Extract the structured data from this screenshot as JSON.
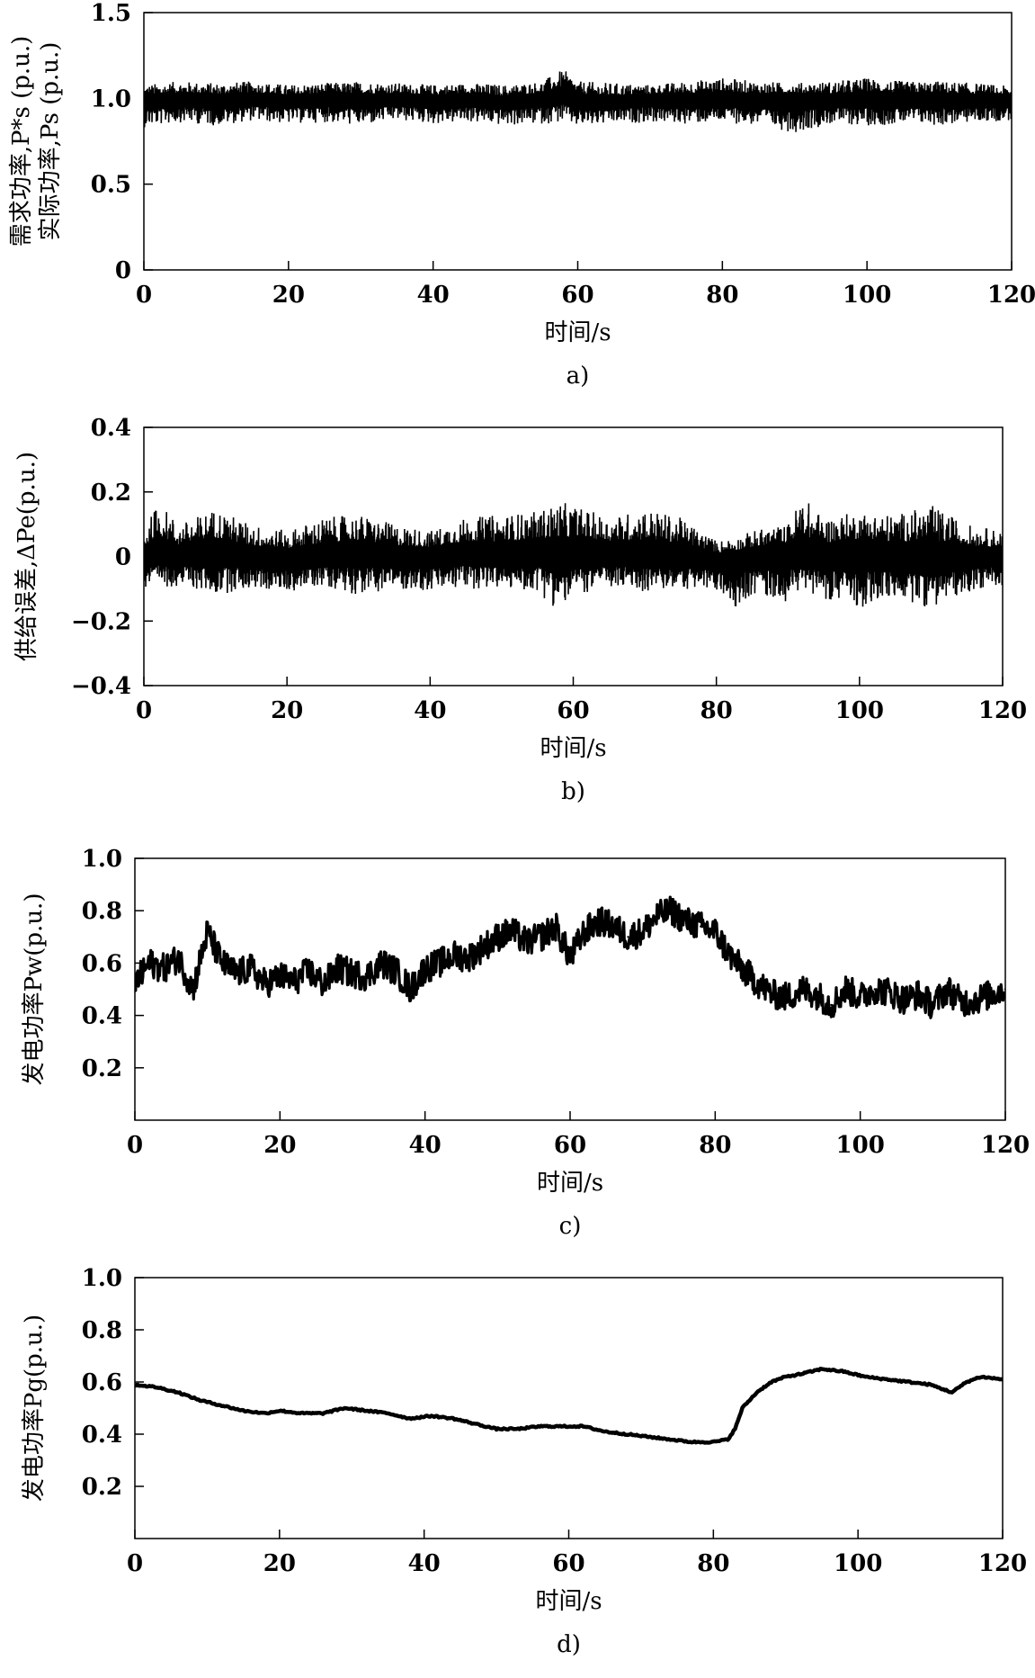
{
  "chart_data": [
    {
      "type": "line",
      "panel_label": "a)",
      "xlabel": "时间/s",
      "ylabel_line1": "需求功率,P*s (p.u.)",
      "ylabel_line2": "实际功率,Ps (p.u.)",
      "xlim": [
        0,
        120
      ],
      "ylim": [
        0,
        1.5
      ],
      "xticks": [
        "0",
        "20",
        "40",
        "60",
        "80",
        "100",
        "120"
      ],
      "yticks": [
        "0",
        "0.5",
        "1.0",
        "1.5"
      ],
      "grid": false,
      "series": [
        {
          "color": "#000000",
          "style": "noisy-band",
          "x": [
            0,
            5,
            10,
            15,
            20,
            25,
            30,
            35,
            40,
            45,
            50,
            55,
            58,
            60,
            65,
            70,
            75,
            80,
            85,
            90,
            95,
            100,
            105,
            110,
            115,
            120
          ],
          "mean": [
            0.98,
            1.0,
            0.99,
            1.0,
            0.99,
            1.0,
            0.99,
            1.0,
            0.99,
            1.0,
            0.98,
            1.0,
            1.02,
            0.99,
            0.98,
            1.0,
            0.99,
            1.0,
            0.99,
            1.0,
            0.99,
            1.0,
            0.99,
            1.0,
            0.99,
            0.98
          ],
          "max": [
            1.08,
            1.1,
            1.09,
            1.1,
            1.08,
            1.09,
            1.1,
            1.09,
            1.08,
            1.09,
            1.08,
            1.1,
            1.17,
            1.1,
            1.09,
            1.08,
            1.1,
            1.12,
            1.1,
            1.09,
            1.1,
            1.12,
            1.1,
            1.1,
            1.09,
            1.07
          ],
          "min": [
            0.83,
            0.86,
            0.84,
            0.87,
            0.85,
            0.86,
            0.84,
            0.87,
            0.85,
            0.86,
            0.84,
            0.85,
            0.86,
            0.83,
            0.85,
            0.86,
            0.85,
            0.86,
            0.84,
            0.8,
            0.85,
            0.84,
            0.85,
            0.84,
            0.86,
            0.87
          ]
        }
      ]
    },
    {
      "type": "line",
      "panel_label": "b)",
      "xlabel": "时间/s",
      "ylabel": "供给误差,ΔPe(p.u.)",
      "xlim": [
        0,
        120
      ],
      "ylim": [
        -0.4,
        0.4
      ],
      "xticks": [
        "0",
        "20",
        "40",
        "60",
        "80",
        "100",
        "120"
      ],
      "yticks": [
        "-0.4",
        "-0.2",
        "0",
        "0.2",
        "0.4"
      ],
      "grid": false,
      "series": [
        {
          "color": "#000000",
          "style": "noisy-band",
          "x": [
            0,
            2,
            5,
            10,
            15,
            20,
            25,
            30,
            35,
            40,
            45,
            50,
            55,
            58,
            60,
            65,
            70,
            75,
            80,
            83,
            85,
            90,
            92,
            95,
            100,
            105,
            110,
            115,
            120
          ],
          "mean": [
            0,
            0.01,
            0,
            0.01,
            0,
            -0.01,
            0,
            0.01,
            0,
            0,
            0.01,
            0,
            0.01,
            0,
            0,
            0.01,
            0,
            0,
            -0.01,
            0,
            0,
            0.01,
            0,
            0,
            0.01,
            0,
            -0.01,
            0,
            0
          ],
          "max": [
            0.08,
            0.17,
            0.1,
            0.15,
            0.1,
            0.08,
            0.12,
            0.13,
            0.1,
            0.08,
            0.12,
            0.13,
            0.14,
            0.17,
            0.16,
            0.12,
            0.15,
            0.12,
            0.05,
            0.06,
            0.08,
            0.1,
            0.19,
            0.12,
            0.14,
            0.13,
            0.16,
            0.1,
            0.08
          ],
          "min": [
            -0.11,
            -0.1,
            -0.09,
            -0.12,
            -0.1,
            -0.11,
            -0.09,
            -0.12,
            -0.1,
            -0.11,
            -0.1,
            -0.1,
            -0.11,
            -0.17,
            -0.12,
            -0.1,
            -0.11,
            -0.1,
            -0.11,
            -0.16,
            -0.12,
            -0.14,
            -0.1,
            -0.13,
            -0.16,
            -0.13,
            -0.16,
            -0.11,
            -0.09
          ]
        }
      ]
    },
    {
      "type": "line",
      "panel_label": "c)",
      "xlabel": "时间/s",
      "ylabel": "发电功率Pw(p.u.)",
      "xlim": [
        0,
        120
      ],
      "ylim": [
        0,
        1.0
      ],
      "xticks": [
        "0",
        "20",
        "40",
        "60",
        "80",
        "100",
        "120"
      ],
      "yticks": [
        "0.2",
        "0.4",
        "0.6",
        "0.8",
        "1.0"
      ],
      "grid": false,
      "series": [
        {
          "color": "#000000",
          "style": "noisy-line",
          "x": [
            0,
            2,
            4,
            6,
            8,
            10,
            12,
            14,
            16,
            18,
            20,
            22,
            24,
            26,
            28,
            30,
            32,
            34,
            36,
            38,
            40,
            42,
            44,
            46,
            48,
            50,
            52,
            54,
            56,
            58,
            60,
            62,
            64,
            66,
            68,
            70,
            72,
            74,
            76,
            78,
            80,
            82,
            84,
            86,
            88,
            90,
            92,
            94,
            96,
            98,
            100,
            102,
            104,
            106,
            108,
            110,
            112,
            114,
            116,
            118,
            120
          ],
          "y": [
            0.52,
            0.6,
            0.58,
            0.62,
            0.5,
            0.72,
            0.6,
            0.56,
            0.58,
            0.52,
            0.55,
            0.53,
            0.57,
            0.52,
            0.58,
            0.56,
            0.55,
            0.6,
            0.57,
            0.5,
            0.58,
            0.6,
            0.63,
            0.62,
            0.66,
            0.7,
            0.72,
            0.68,
            0.7,
            0.74,
            0.62,
            0.72,
            0.76,
            0.74,
            0.7,
            0.72,
            0.78,
            0.8,
            0.76,
            0.74,
            0.72,
            0.63,
            0.57,
            0.52,
            0.48,
            0.47,
            0.5,
            0.48,
            0.44,
            0.5,
            0.47,
            0.5,
            0.49,
            0.46,
            0.48,
            0.44,
            0.5,
            0.45,
            0.46,
            0.48,
            0.5
          ],
          "band": 0.07
        }
      ]
    },
    {
      "type": "line",
      "panel_label": "d)",
      "xlabel": "时间/s",
      "ylabel": "发电功率Pg(p.u.)",
      "xlim": [
        0,
        120
      ],
      "ylim": [
        0,
        1.0
      ],
      "xticks": [
        "0",
        "20",
        "40",
        "60",
        "80",
        "100",
        "120"
      ],
      "yticks": [
        "0.2",
        "0.4",
        "0.6",
        "0.8",
        "1.0"
      ],
      "grid": false,
      "series": [
        {
          "color": "#000000",
          "style": "line",
          "x": [
            0,
            3,
            6,
            9,
            12,
            15,
            18,
            20,
            23,
            26,
            29,
            32,
            35,
            38,
            41,
            44,
            47,
            50,
            53,
            56,
            59,
            62,
            65,
            68,
            71,
            74,
            77,
            80,
            82,
            83,
            84,
            86,
            88,
            90,
            92,
            95,
            98,
            101,
            104,
            107,
            110,
            113,
            115,
            117,
            120
          ],
          "y": [
            0.59,
            0.58,
            0.56,
            0.53,
            0.51,
            0.49,
            0.48,
            0.49,
            0.48,
            0.48,
            0.5,
            0.49,
            0.48,
            0.46,
            0.47,
            0.46,
            0.44,
            0.42,
            0.42,
            0.43,
            0.43,
            0.43,
            0.41,
            0.4,
            0.39,
            0.38,
            0.37,
            0.37,
            0.38,
            0.42,
            0.5,
            0.56,
            0.6,
            0.62,
            0.63,
            0.65,
            0.64,
            0.62,
            0.61,
            0.6,
            0.59,
            0.56,
            0.6,
            0.62,
            0.61
          ]
        }
      ]
    }
  ]
}
